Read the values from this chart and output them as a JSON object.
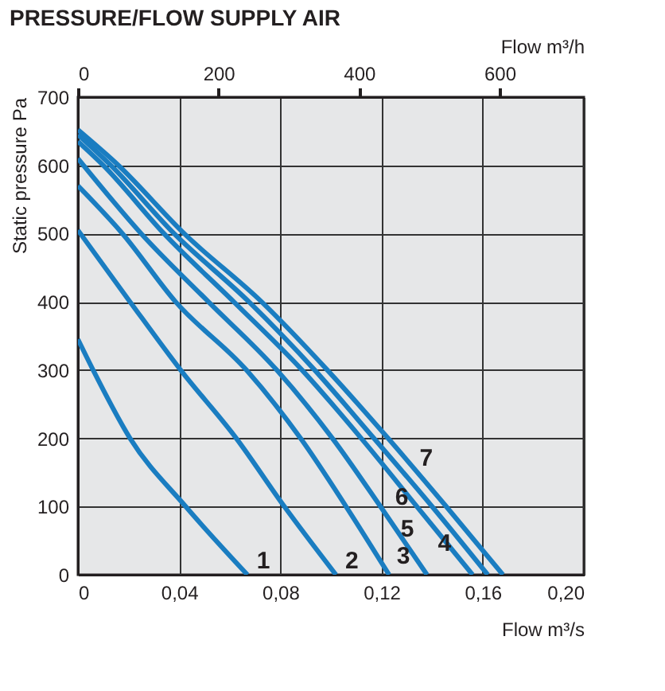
{
  "chart_data": {
    "type": "line",
    "title": "PRESSURE/FLOW SUPPLY AIR",
    "xlabel": "Flow m³/s",
    "x2label": "Flow m³/h",
    "ylabel": "Static pressure Pa",
    "xlim": [
      0,
      0.2
    ],
    "xticks": [
      0,
      {
        "value": 0.04,
        "label": "0,04"
      },
      {
        "value": 0.08,
        "label": "0,08"
      },
      {
        "value": 0.12,
        "label": "0,12"
      },
      {
        "value": 0.16,
        "label": "0,16"
      },
      {
        "value": 0.2,
        "label": "0,20"
      }
    ],
    "x2lim": [
      0,
      720
    ],
    "x2ticks": [
      0,
      200,
      400,
      600
    ],
    "ylim": [
      0,
      700
    ],
    "yticks": [
      0,
      100,
      200,
      300,
      400,
      500,
      600,
      700
    ],
    "grid": true,
    "line_style": "solid",
    "series": [
      {
        "name": "1",
        "color": "#1a7dc1",
        "x": [
          0,
          0.006,
          0.0206,
          0.0426,
          0.067
        ],
        "values": [
          345,
          300,
          200,
          100,
          0
        ]
      },
      {
        "name": "2",
        "color": "#1a7dc1",
        "x": [
          0,
          0.0206,
          0.0406,
          0.0626,
          0.0816,
          0.102
        ],
        "values": [
          505,
          400,
          300,
          200,
          100,
          0
        ]
      },
      {
        "name": "3",
        "color": "#1a7dc1",
        "x": [
          0,
          0.0176,
          0.0386,
          0.0666,
          0.088,
          0.106,
          0.123
        ],
        "values": [
          570,
          500,
          400,
          300,
          200,
          100,
          0
        ]
      },
      {
        "name": "4",
        "color": "#1a7dc1",
        "x": [
          0,
          0.025,
          0.0516,
          0.0786,
          0.1006,
          0.1196,
          0.138
        ],
        "values": [
          610,
          500,
          400,
          300,
          200,
          100,
          0
        ]
      },
      {
        "name": "5",
        "color": "#1a7dc1",
        "x": [
          0,
          0.01,
          0.034,
          0.0616,
          0.0886,
          0.112,
          0.134,
          0.156
        ],
        "values": [
          635,
          600,
          500,
          400,
          300,
          200,
          100,
          0
        ]
      },
      {
        "name": "6",
        "color": "#1a7dc1",
        "x": [
          0,
          0.013,
          0.038,
          0.0676,
          0.0936,
          0.117,
          0.14,
          0.162
        ],
        "values": [
          645,
          600,
          500,
          400,
          300,
          200,
          100,
          0
        ]
      },
      {
        "name": "7",
        "color": "#1a7dc1",
        "x": [
          0,
          0.016,
          0.042,
          0.0726,
          0.0986,
          0.1226,
          0.1456,
          0.168
        ],
        "values": [
          652,
          600,
          500,
          400,
          300,
          200,
          100,
          0
        ]
      }
    ]
  }
}
